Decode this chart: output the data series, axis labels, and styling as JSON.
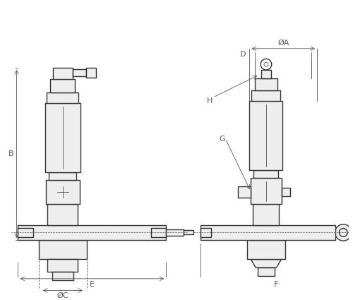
{
  "bg_color": "#ffffff",
  "line_color": "#333333",
  "dim_color": "#555555",
  "gray_fill": "#d8d8d8",
  "light_gray": "#eeeeee",
  "fig_width": 5.0,
  "fig_height": 4.25,
  "dpi": 100,
  "labels": {
    "A": "ØA",
    "B": "B",
    "C": "ØC",
    "D": "D",
    "E": "E",
    "F": "F",
    "G": "G",
    "H": "H"
  }
}
